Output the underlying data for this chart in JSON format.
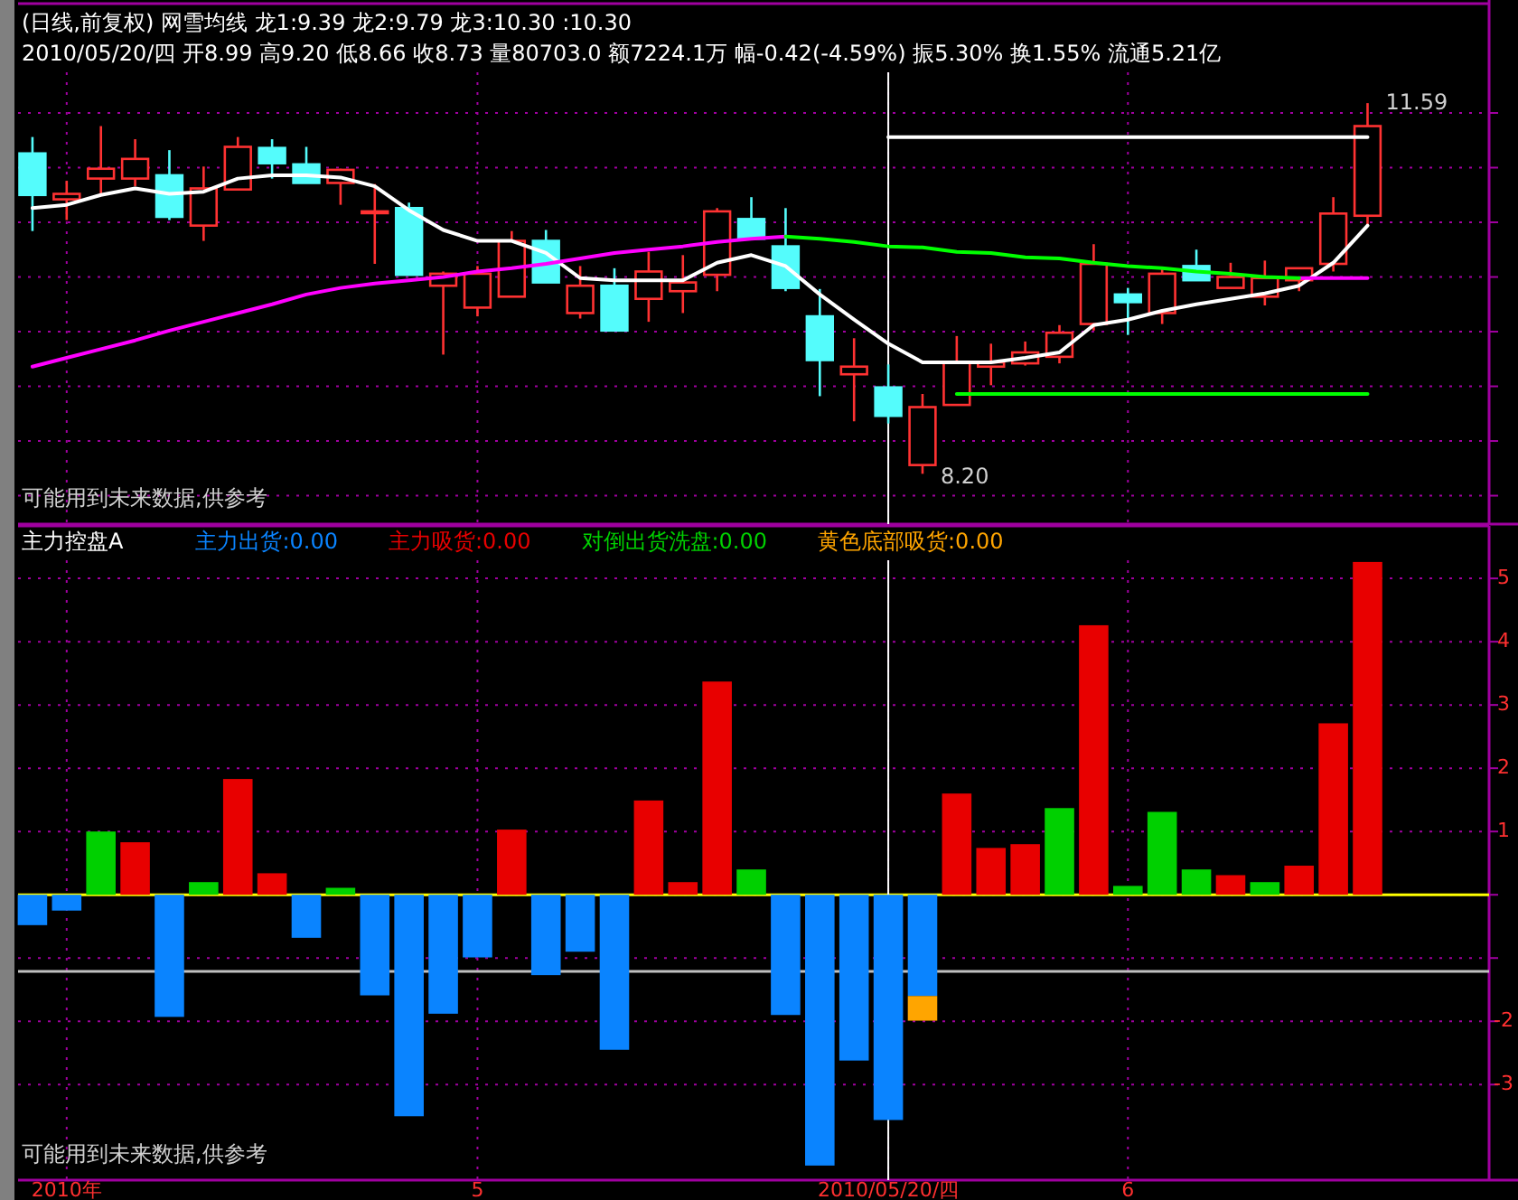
{
  "chart_data": [
    {
      "type": "candlestick",
      "title": "(日线,前复权) 网雪均线 龙1:9.39 龙2:9.79 龙3:10.30 :10.30",
      "subtitle": "2010/05/20/四 开8.99 高9.20 低8.66 收8.73 量80703.0 额7224.1万 幅-0.42(-4.59%) 振5.30% 换1.55% 流通5.21亿",
      "categories": [
        null,
        "2010年",
        null,
        null,
        null,
        null,
        null,
        null,
        null,
        null,
        null,
        null,
        null,
        "5",
        null,
        null,
        null,
        null,
        null,
        null,
        null,
        null,
        null,
        null,
        null,
        "2010/05/20/四",
        null,
        null,
        null,
        null,
        null,
        null,
        "6",
        null,
        null,
        null,
        null,
        null,
        null,
        null
      ],
      "ohlc": [
        [
          11.13,
          11.28,
          10.42,
          10.75
        ],
        [
          10.71,
          10.88,
          10.52,
          10.76
        ],
        [
          10.9,
          11.38,
          10.76,
          10.99
        ],
        [
          10.9,
          11.26,
          10.83,
          11.08
        ],
        [
          10.93,
          11.16,
          10.52,
          10.55
        ],
        [
          10.47,
          11.01,
          10.33,
          10.81
        ],
        [
          10.8,
          11.28,
          10.8,
          11.19
        ],
        [
          11.18,
          11.26,
          10.9,
          11.04
        ],
        [
          11.03,
          11.19,
          10.86,
          10.86
        ],
        [
          10.86,
          10.99,
          10.66,
          10.98
        ],
        [
          10.6,
          10.85,
          10.12,
          10.6
        ],
        [
          10.63,
          10.68,
          10.02,
          10.02
        ],
        [
          9.92,
          10.05,
          9.29,
          10.03
        ],
        [
          9.72,
          10.1,
          9.64,
          10.03
        ],
        [
          9.82,
          10.42,
          9.82,
          10.33
        ],
        [
          10.33,
          10.43,
          9.95,
          9.95
        ],
        [
          9.67,
          10.1,
          9.62,
          9.92
        ],
        [
          9.92,
          10.08,
          9.51,
          9.51
        ],
        [
          9.8,
          10.23,
          9.59,
          10.05
        ],
        [
          9.87,
          10.2,
          9.67,
          9.95
        ],
        [
          10.02,
          10.63,
          9.87,
          10.6
        ],
        [
          10.53,
          10.73,
          10.35,
          10.35
        ],
        [
          10.28,
          10.63,
          9.87,
          9.9
        ],
        [
          9.64,
          9.89,
          8.91,
          9.24
        ],
        [
          9.11,
          9.44,
          8.68,
          9.18
        ],
        [
          8.99,
          9.2,
          8.66,
          8.73
        ],
        [
          8.28,
          8.93,
          8.2,
          8.81
        ],
        [
          8.83,
          9.46,
          8.83,
          9.22
        ],
        [
          9.18,
          9.39,
          9.01,
          9.22
        ],
        [
          9.21,
          9.41,
          9.19,
          9.31
        ],
        [
          9.27,
          9.56,
          9.21,
          9.49
        ],
        [
          9.57,
          10.3,
          9.51,
          10.12
        ],
        [
          9.84,
          9.9,
          9.47,
          9.77
        ],
        [
          9.67,
          10.07,
          9.57,
          10.03
        ],
        [
          10.1,
          10.25,
          9.97,
          9.97
        ],
        [
          9.9,
          10.13,
          9.9,
          10.0
        ],
        [
          9.82,
          10.15,
          9.74,
          9.99
        ],
        [
          9.97,
          10.08,
          9.87,
          10.08
        ],
        [
          10.12,
          10.73,
          10.05,
          10.58
        ],
        [
          10.56,
          11.59,
          10.47,
          11.38
        ]
      ],
      "colors": [
        "#54fcfc",
        "#ff3232",
        "#ff3232",
        "#ff3232",
        "#54fcfc",
        "#ff3232",
        "#ff3232",
        "#54fcfc",
        "#54fcfc",
        "#ff3232",
        "#ff3232",
        "#54fcfc",
        "#ff3232",
        "#ff3232",
        "#ff3232",
        "#54fcfc",
        "#ff3232",
        "#54fcfc",
        "#ff3232",
        "#ff3232",
        "#ff3232",
        "#54fcfc",
        "#54fcfc",
        "#54fcfc",
        "#ff3232",
        "#54fcfc",
        "#ff3232",
        "#ff3232",
        "#ff3232",
        "#ff3232",
        "#ff3232",
        "#ff3232",
        "#54fcfc",
        "#ff3232",
        "#54fcfc",
        "#ff3232",
        "#ff3232",
        "#ff3232",
        "#ff3232",
        "#ff3232"
      ],
      "series": [
        {
          "type": "line",
          "color": "#ffffff",
          "values": [
            10.63,
            10.66,
            10.75,
            10.81,
            10.76,
            10.78,
            10.9,
            10.93,
            10.93,
            10.91,
            10.83,
            10.61,
            10.43,
            10.33,
            10.33,
            10.22,
            9.99,
            9.97,
            9.97,
            9.97,
            10.13,
            10.2,
            10.1,
            9.84,
            9.61,
            9.39,
            9.22,
            9.22,
            9.22,
            9.26,
            9.31,
            9.56,
            9.61,
            9.69,
            9.75,
            9.8,
            9.85,
            9.92,
            10.13,
            10.47
          ]
        },
        {
          "type": "line",
          "color": "#ff00ff",
          "values": [
            9.18,
            9.26,
            9.34,
            9.42,
            9.51,
            9.59,
            9.67,
            9.75,
            9.84,
            9.9,
            9.94,
            9.97,
            10.0,
            10.05,
            10.08,
            10.12,
            10.17,
            10.22,
            10.25,
            10.28,
            10.32,
            10.35,
            10.37,
            null,
            null,
            null,
            null,
            null,
            null,
            null,
            null,
            null,
            null,
            null,
            null,
            null,
            null,
            9.99,
            9.99,
            9.99
          ]
        },
        {
          "type": "line",
          "color": "#00ff00",
          "values": [
            null,
            null,
            null,
            null,
            null,
            null,
            null,
            null,
            null,
            null,
            null,
            null,
            null,
            null,
            null,
            null,
            null,
            null,
            null,
            null,
            null,
            null,
            10.37,
            10.35,
            10.32,
            10.28,
            10.27,
            10.23,
            10.22,
            10.18,
            10.17,
            10.13,
            10.1,
            10.08,
            10.05,
            10.03,
            10.0,
            9.99,
            null,
            null
          ]
        },
        {
          "type": "line",
          "color": "#ffffff",
          "values": [
            null,
            null,
            null,
            null,
            null,
            null,
            null,
            null,
            null,
            null,
            null,
            null,
            null,
            null,
            null,
            null,
            null,
            null,
            null,
            null,
            null,
            null,
            null,
            null,
            null,
            11.28,
            11.28,
            11.28,
            11.28,
            11.28,
            11.28,
            11.28,
            11.28,
            11.28,
            11.28,
            11.28,
            11.28,
            11.28,
            11.28,
            11.28
          ]
        },
        {
          "type": "line",
          "color": "#00ff00",
          "values": [
            null,
            null,
            null,
            null,
            null,
            null,
            null,
            null,
            null,
            null,
            null,
            null,
            null,
            null,
            null,
            null,
            null,
            null,
            null,
            null,
            null,
            null,
            null,
            null,
            null,
            null,
            null,
            8.93,
            8.93,
            8.93,
            8.93,
            8.93,
            8.93,
            8.93,
            8.93,
            8.93,
            8.93,
            8.93,
            8.93,
            8.93
          ]
        }
      ],
      "ylim": [
        7.74,
        12.5
      ],
      "yticks": [
        8,
        8.5,
        9,
        9.5,
        10,
        10.5,
        11,
        11.5
      ],
      "tick_labels": false,
      "grid": true,
      "ref_lines": [
        {
          "axis": "x",
          "value": "2010/05/20/四",
          "color": "#ffffff"
        }
      ],
      "annotations": [
        "可能用到未来数据,供参考",
        "11.59",
        "8.20"
      ]
    },
    {
      "type": "bar",
      "stacked": true,
      "title": "主力控盘A",
      "legend": "top left",
      "categories": [
        null,
        "2010年",
        null,
        null,
        null,
        null,
        null,
        null,
        null,
        null,
        null,
        null,
        null,
        "5",
        null,
        null,
        null,
        null,
        null,
        null,
        null,
        null,
        null,
        null,
        null,
        "2010/05/20/四",
        null,
        null,
        null,
        null,
        null,
        null,
        "6",
        null,
        null,
        null,
        null,
        null,
        null,
        null
      ],
      "series": [
        {
          "name": "主力出货:0.00",
          "color": "#0a84ff",
          "values": [
            -0.48,
            -0.25,
            null,
            null,
            -1.93,
            null,
            null,
            null,
            -0.68,
            null,
            -1.59,
            -3.5,
            -1.88,
            -0.99,
            null,
            -1.27,
            -0.9,
            -2.45,
            null,
            null,
            null,
            null,
            -1.9,
            -4.28,
            -2.62,
            -3.56,
            -1.6,
            null,
            null,
            null,
            null,
            null,
            null,
            null,
            null,
            null,
            null,
            null,
            null,
            null
          ]
        },
        {
          "name": "主力吸货:0.00",
          "color": "#e80000",
          "values": [
            null,
            null,
            null,
            0.83,
            null,
            null,
            1.83,
            0.34,
            null,
            null,
            null,
            null,
            null,
            null,
            1.03,
            null,
            null,
            null,
            1.49,
            0.2,
            3.37,
            null,
            null,
            null,
            null,
            null,
            null,
            1.6,
            0.74,
            0.8,
            null,
            4.26,
            null,
            null,
            null,
            0.31,
            null,
            0.46,
            2.71,
            5.26
          ]
        },
        {
          "name": "对倒出货洗盘:0.00",
          "color": "#00d000",
          "values": [
            null,
            null,
            1.0,
            null,
            null,
            0.2,
            null,
            null,
            null,
            0.11,
            null,
            null,
            null,
            null,
            null,
            null,
            null,
            null,
            null,
            null,
            null,
            0.4,
            null,
            null,
            null,
            null,
            null,
            null,
            null,
            null,
            1.37,
            null,
            0.14,
            1.31,
            0.4,
            null,
            0.2,
            null,
            null,
            null
          ]
        },
        {
          "name": "黄色底部吸货:0.00",
          "color": "#ffa500",
          "values": [
            null,
            null,
            null,
            null,
            null,
            null,
            null,
            null,
            null,
            null,
            null,
            null,
            null,
            null,
            null,
            null,
            null,
            null,
            null,
            null,
            null,
            null,
            null,
            null,
            null,
            null,
            -0.39,
            null,
            null,
            null,
            null,
            null,
            null,
            null,
            null,
            null,
            null,
            null,
            null,
            null
          ]
        }
      ],
      "ylim": [
        -4.51,
        5.83
      ],
      "yticks": [
        -3,
        -2,
        {
          "value": -1,
          "label": null
        },
        {
          "value": 0,
          "label": null
        },
        1,
        2,
        3,
        4,
        5
      ],
      "grid": true,
      "ref_lines": [
        {
          "axis": "y",
          "value": 0,
          "color": "#ffff00"
        },
        {
          "axis": "y",
          "value": -1.21,
          "color": "#c0c0c0"
        },
        {
          "axis": "x",
          "value": "2010/05/20/四",
          "color": "#ffffff"
        }
      ],
      "annotations": [
        "可能用到未来数据,供参考"
      ]
    }
  ]
}
